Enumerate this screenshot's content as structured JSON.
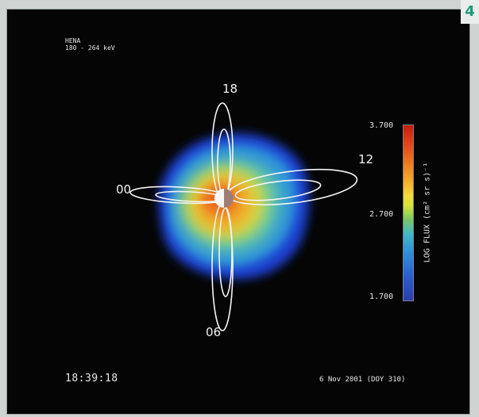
{
  "page": {
    "number": "4"
  },
  "instrument": {
    "name": "HENA",
    "energy_range": "180 - 264 keV"
  },
  "image": {
    "timestamp": "18:39:18",
    "date": "6 Nov 2001   (DOY 310)"
  },
  "local_time_labels": {
    "top": "18",
    "right": "12",
    "left": "00",
    "bottom": "06"
  },
  "colorbar": {
    "title": "LOG FLUX (cm² sr s)⁻¹",
    "max_label": "3.700",
    "mid_label": "2.700",
    "min_label": "1.700",
    "colors": [
      "#c81c10",
      "#f29a22",
      "#f4d836",
      "#7fc95a",
      "#3fb9c7",
      "#2e92dc",
      "#2a3fb0"
    ]
  }
}
